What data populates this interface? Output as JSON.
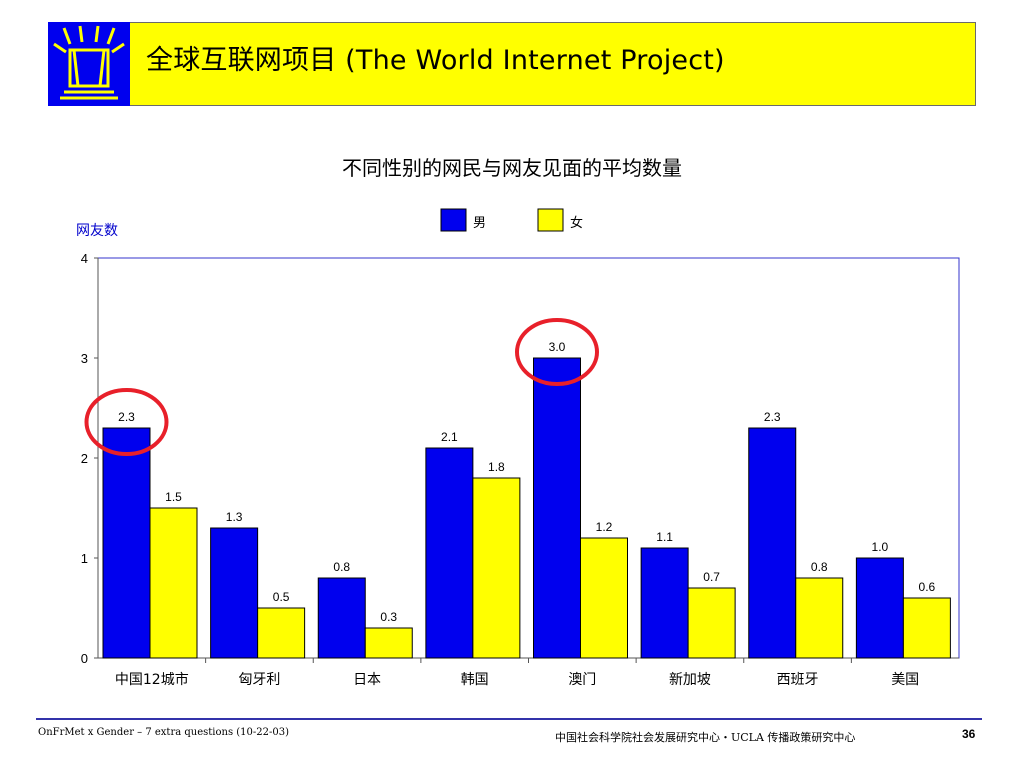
{
  "header": {
    "title": "全球互联网项目 (The World Internet Project)"
  },
  "chart_data": {
    "type": "bar",
    "title": "不同性别的网民与网友见面的平均数量",
    "ylabel": "网友数",
    "xlabel": "",
    "ylim": [
      0,
      4
    ],
    "yticks": [
      "0",
      "1",
      "2",
      "3",
      "4"
    ],
    "categories": [
      "中国12城市",
      "匈牙利",
      "日本",
      "韩国",
      "澳门",
      "新加坡",
      "西班牙",
      "美国"
    ],
    "series": [
      {
        "name": "男",
        "color": "#0000ee",
        "values": [
          2.3,
          1.3,
          0.8,
          2.1,
          3.0,
          1.1,
          2.3,
          1.0
        ],
        "labels": [
          "2.3",
          "1.3",
          "0.8",
          "2.1",
          "3.0",
          "1.1",
          "2.3",
          "1.0"
        ]
      },
      {
        "name": "女",
        "color": "#ffff00",
        "values": [
          1.5,
          0.5,
          0.3,
          1.8,
          1.2,
          0.7,
          0.8,
          0.6
        ],
        "labels": [
          "1.5",
          "0.5",
          "0.3",
          "1.8",
          "1.2",
          "0.7",
          "0.8",
          "0.6"
        ]
      }
    ],
    "legend_position": "top",
    "highlight_color": "#e8202a",
    "grid": false
  },
  "footer": {
    "left_text": "OnFrMet x Gender – 7 extra questions (10-22-03)",
    "org_text": "中国社会科学院社会发展研究中心・UCLA 传播政策研究中心",
    "page": "36"
  }
}
